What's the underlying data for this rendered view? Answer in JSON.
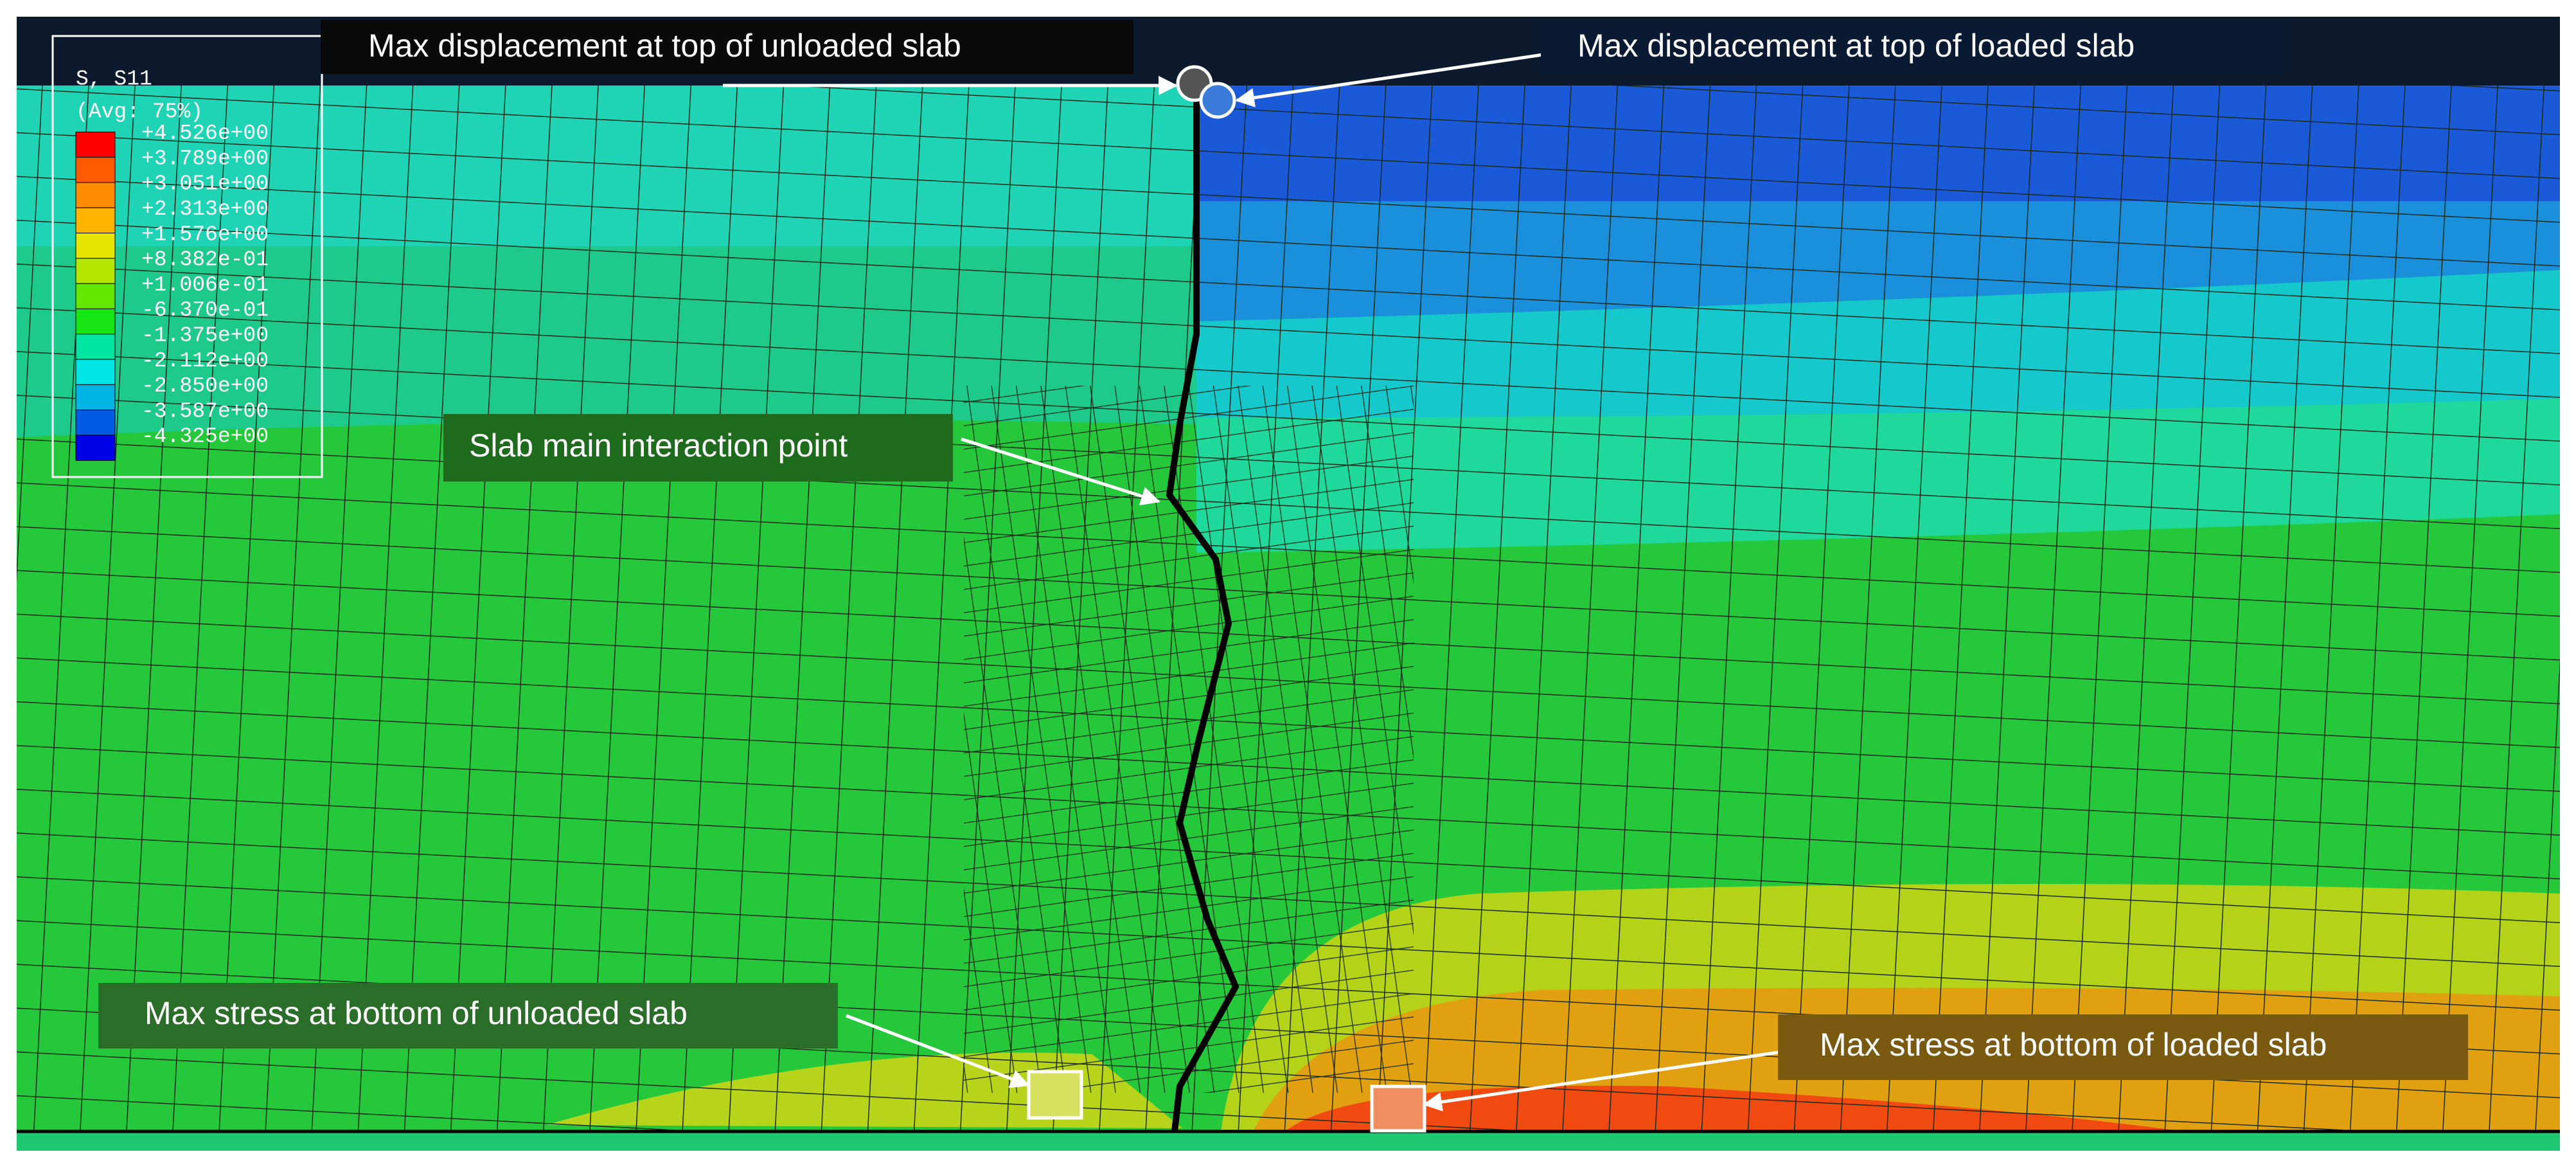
{
  "legend": {
    "title": "S, S11",
    "subtitle": "(Avg: 75%)",
    "labels": [
      "+4.526e+00",
      "+3.789e+00",
      "+3.051e+00",
      "+2.313e+00",
      "+1.576e+00",
      "+8.382e-01",
      "+1.006e-01",
      "-6.370e-01",
      "-1.375e+00",
      "-2.112e+00",
      "-2.850e+00",
      "-3.587e+00",
      "-4.325e+00"
    ]
  },
  "annotations": [
    "Max displacement at top of unloaded slab",
    "Max displacement at top of loaded slab",
    "Slab main interaction point",
    "Max stress at bottom of unloaded slab",
    "Max stress at bottom of loaded slab"
  ]
}
